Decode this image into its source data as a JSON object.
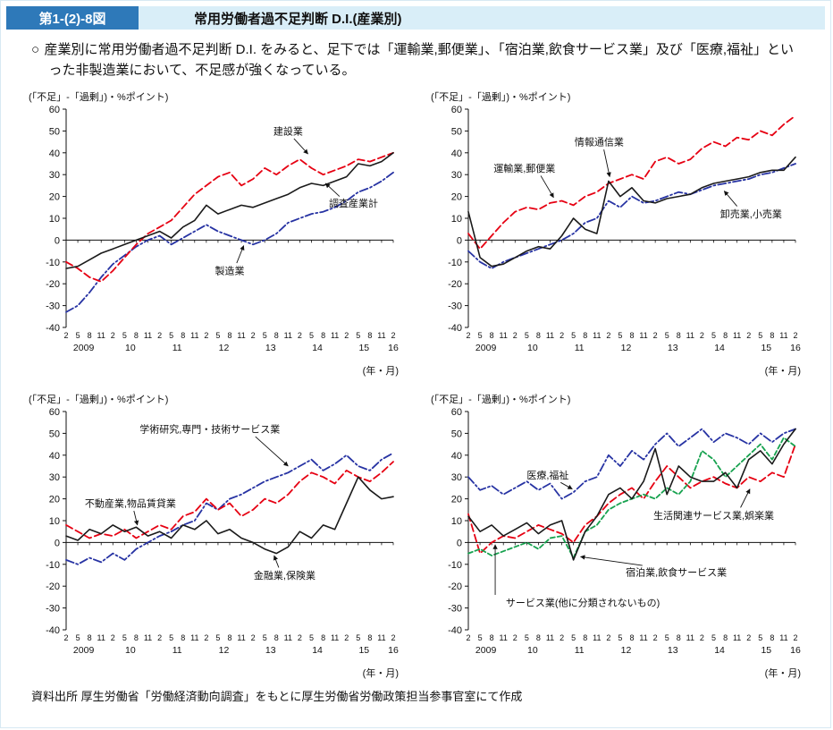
{
  "header": {
    "figure_label": "第1-(2)-8図",
    "title": "常用労働者過不足判断 D.I.(産業別)"
  },
  "description": {
    "marker": "○",
    "text": "産業別に常用労働者過不足判断 D.I. をみると、足下では「運輸業,郵便業」、「宿泊業,飲食サービス業」及び「医療,福祉」といった非製造業において、不足感が強くなっている。"
  },
  "source": "資料出所 厚生労働省「労働経済動向調査」をもとに厚生労働省労働政策担当参事官室にて作成",
  "colors": {
    "black": "#1a1a1a",
    "red": "#e60012",
    "blue": "#2733a3",
    "green": "#17a24f",
    "header_box": "#2e79b9",
    "header_bar": "#d9eef8"
  },
  "axis": {
    "y_label": "(「不足」-「過剰」)・%ポイント)",
    "x_note": "(年・月)",
    "ylim": [
      -40,
      60
    ],
    "y_step": 10,
    "quarter_labels": [
      "2",
      "5",
      "8",
      "11",
      "2",
      "5",
      "8",
      "11",
      "2",
      "5",
      "8",
      "11",
      "2",
      "5",
      "8",
      "11",
      "2",
      "5",
      "8",
      "11",
      "2",
      "5",
      "8",
      "11",
      "2",
      "5",
      "8",
      "11",
      "2"
    ],
    "year_labels": [
      {
        "text": "2009",
        "i": 1.5
      },
      {
        "text": "10",
        "i": 5.5
      },
      {
        "text": "11",
        "i": 9.5
      },
      {
        "text": "12",
        "i": 13.5
      },
      {
        "text": "13",
        "i": 17.5
      },
      {
        "text": "14",
        "i": 21.5
      },
      {
        "text": "15",
        "i": 25.5
      },
      {
        "text": "16",
        "i": 28
      }
    ]
  },
  "chart_data": [
    {
      "type": "line",
      "panel": "top-left",
      "x_range": "2009年2月〜2016年2月(四半期: 2,5,8,11月)",
      "series": [
        {
          "key": "manufacturing",
          "name": "製造業",
          "color": "blue",
          "style": "dashdot",
          "values": [
            -33,
            -30,
            -24,
            -17,
            -11,
            -7,
            -3,
            0,
            2,
            -2,
            1,
            4,
            7,
            4,
            2,
            0,
            -2,
            0,
            3,
            8,
            10,
            12,
            13,
            15,
            18,
            22,
            24,
            27,
            31
          ]
        },
        {
          "key": "construction",
          "name": "建設業",
          "color": "red",
          "style": "dashed",
          "values": [
            -10,
            -13,
            -17,
            -19,
            -14,
            -8,
            -2,
            3,
            6,
            9,
            15,
            21,
            25,
            29,
            31,
            25,
            28,
            33,
            30,
            34,
            37,
            33,
            30,
            32,
            34,
            37,
            36,
            38,
            40
          ]
        },
        {
          "key": "all-industries",
          "name": "調査産業計",
          "color": "black",
          "style": "solid",
          "values": [
            -13,
            -12,
            -9,
            -6,
            -4,
            -2,
            0,
            2,
            4,
            1,
            6,
            9,
            16,
            12,
            14,
            16,
            15,
            17,
            19,
            21,
            24,
            26,
            25,
            27,
            29,
            35,
            34,
            36,
            40
          ]
        }
      ],
      "annotations": [
        {
          "text": "建設業",
          "x": 19,
          "y": 50,
          "line": [
            19.5,
            46.5,
            20.7,
            39.5
          ]
        },
        {
          "text": "調査産業計",
          "x": 24.6,
          "y": 17,
          "line": [
            23.4,
            20,
            22.2,
            26
          ]
        },
        {
          "text": "製造業",
          "x": 14,
          "y": -14,
          "line": [
            14.6,
            -10.5,
            15.2,
            -2.5
          ]
        }
      ]
    },
    {
      "type": "line",
      "panel": "top-right",
      "x_range": "2009年2月〜2016年2月(四半期: 2,5,8,11月)",
      "series": [
        {
          "key": "wholesale-retail",
          "name": "卸売業,小売業",
          "color": "blue",
          "style": "dashdot",
          "values": [
            -5,
            -10,
            -13,
            -10,
            -8,
            -6,
            -4,
            -2,
            0,
            3,
            8,
            10,
            18,
            15,
            20,
            17,
            18,
            20,
            22,
            21,
            23,
            25,
            26,
            27,
            28,
            30,
            31,
            33,
            35
          ]
        },
        {
          "key": "transport-postal",
          "name": "運輸業,郵便業",
          "color": "red",
          "style": "dashed",
          "values": [
            3,
            -4,
            2,
            8,
            13,
            15,
            14,
            17,
            18,
            16,
            20,
            22,
            26,
            28,
            30,
            28,
            36,
            38,
            35,
            37,
            42,
            45,
            43,
            47,
            46,
            50,
            48,
            53,
            57
          ]
        },
        {
          "key": "information-communications",
          "name": "情報通信業",
          "color": "black",
          "style": "solid",
          "values": [
            13,
            -8,
            -12,
            -11,
            -8,
            -5,
            -3,
            -4,
            2,
            10,
            5,
            3,
            27,
            20,
            24,
            18,
            17,
            19,
            20,
            21,
            24,
            26,
            27,
            28,
            29,
            31,
            32,
            32,
            38
          ]
        }
      ],
      "annotations": [
        {
          "text": "運輸業,郵便業",
          "x": 4.8,
          "y": 33,
          "line": [
            6.2,
            29.5,
            7.3,
            19.5
          ]
        },
        {
          "text": "情報通信業",
          "x": 11.2,
          "y": 45,
          "line": [
            11.6,
            41.5,
            12.1,
            29
          ]
        },
        {
          "text": "卸売業,小売業",
          "x": 24.2,
          "y": 12,
          "line": [
            23,
            15.5,
            21.9,
            22.5
          ]
        }
      ]
    },
    {
      "type": "line",
      "panel": "bottom-left",
      "x_range": "2009年2月〜2016年2月(四半期: 2,5,8,11月)",
      "series": [
        {
          "key": "academic-professional-technical",
          "name": "学術研究,専門・技術サービス業",
          "color": "blue",
          "style": "dashdot",
          "values": [
            -8,
            -10,
            -7,
            -9,
            -5,
            -8,
            -3,
            0,
            3,
            5,
            8,
            10,
            18,
            15,
            20,
            22,
            25,
            28,
            30,
            32,
            35,
            38,
            33,
            36,
            40,
            35,
            33,
            38,
            41
          ]
        },
        {
          "key": "real-estate-leasing",
          "name": "不動産業,物品賃貸業",
          "color": "red",
          "style": "dashed",
          "values": [
            8,
            5,
            2,
            4,
            3,
            6,
            2,
            5,
            8,
            6,
            12,
            14,
            20,
            15,
            18,
            12,
            15,
            20,
            18,
            22,
            28,
            32,
            30,
            27,
            33,
            30,
            28,
            32,
            37
          ]
        },
        {
          "key": "finance-insurance",
          "name": "金融業,保険業",
          "color": "black",
          "style": "solid",
          "values": [
            3,
            1,
            6,
            4,
            8,
            5,
            7,
            3,
            5,
            2,
            8,
            6,
            10,
            4,
            6,
            2,
            0,
            -3,
            -5,
            -2,
            5,
            2,
            8,
            6,
            18,
            30,
            24,
            20,
            21
          ]
        }
      ],
      "annotations": [
        {
          "text": "学術研究,専門・技術サービス業",
          "x": 12.3,
          "y": 52,
          "line": [
            16.2,
            48.5,
            19,
            35
          ]
        },
        {
          "text": "不動産業,物品賃貸業",
          "x": 5.5,
          "y": 18,
          "line": [
            5.8,
            14.5,
            6.1,
            8
          ]
        },
        {
          "text": "金融業,保険業",
          "x": 18.7,
          "y": -15,
          "line": [
            18.2,
            -11.5,
            17.8,
            -6
          ]
        }
      ]
    },
    {
      "type": "line",
      "panel": "bottom-right",
      "x_range": "2009年2月〜2016年2月(四半期: 2,5,8,11月)",
      "series": [
        {
          "key": "medical-welfare",
          "name": "医療,福祉",
          "color": "blue",
          "style": "dashdot",
          "values": [
            30,
            24,
            26,
            22,
            25,
            28,
            24,
            27,
            20,
            23,
            28,
            30,
            40,
            35,
            42,
            38,
            45,
            50,
            44,
            48,
            52,
            46,
            50,
            48,
            45,
            50,
            46,
            50,
            52
          ]
        },
        {
          "key": "life-related-services-entertainment",
          "name": "生活関連サービス業,娯楽業",
          "color": "red",
          "style": "dashed",
          "values": [
            13,
            -5,
            0,
            3,
            2,
            5,
            8,
            6,
            4,
            0,
            8,
            12,
            18,
            22,
            25,
            20,
            28,
            35,
            30,
            25,
            28,
            30,
            27,
            25,
            30,
            28,
            32,
            30,
            45
          ]
        },
        {
          "key": "accommodation-food-services",
          "name": "宿泊業,飲食サービス業",
          "color": "green",
          "style": "short_dashed",
          "values": [
            -5,
            -3,
            -6,
            -4,
            -2,
            0,
            -3,
            2,
            3,
            -7,
            5,
            8,
            15,
            18,
            20,
            22,
            20,
            25,
            22,
            28,
            42,
            38,
            30,
            35,
            40,
            45,
            38,
            48,
            44
          ]
        },
        {
          "key": "services-nec",
          "name": "サービス業(他に分類されないもの)",
          "color": "black",
          "style": "solid",
          "values": [
            12,
            5,
            8,
            3,
            6,
            9,
            4,
            8,
            10,
            -8,
            5,
            12,
            22,
            25,
            20,
            28,
            43,
            22,
            35,
            30,
            28,
            28,
            32,
            25,
            38,
            42,
            36,
            45,
            52
          ]
        }
      ],
      "annotations": [
        {
          "text": "医療,福祉",
          "x": 6.8,
          "y": 31,
          "line": [
            7.9,
            27.5,
            8.9,
            24.5
          ]
        },
        {
          "text": "生活関連サービス業,娯楽業",
          "x": 21,
          "y": 12.5,
          "line": [
            23.3,
            16,
            24.1,
            24.5
          ]
        },
        {
          "text": "宿泊業,飲食サービス業",
          "x": 17.8,
          "y": -13.5,
          "line": [
            14.9,
            -10.5,
            9.6,
            -6.5
          ]
        },
        {
          "text": "サービス業(他に分類されないもの)",
          "x": 9.8,
          "y": -27.5,
          "line": [
            2.3,
            -24,
            2.3,
            -1
          ]
        }
      ]
    }
  ]
}
